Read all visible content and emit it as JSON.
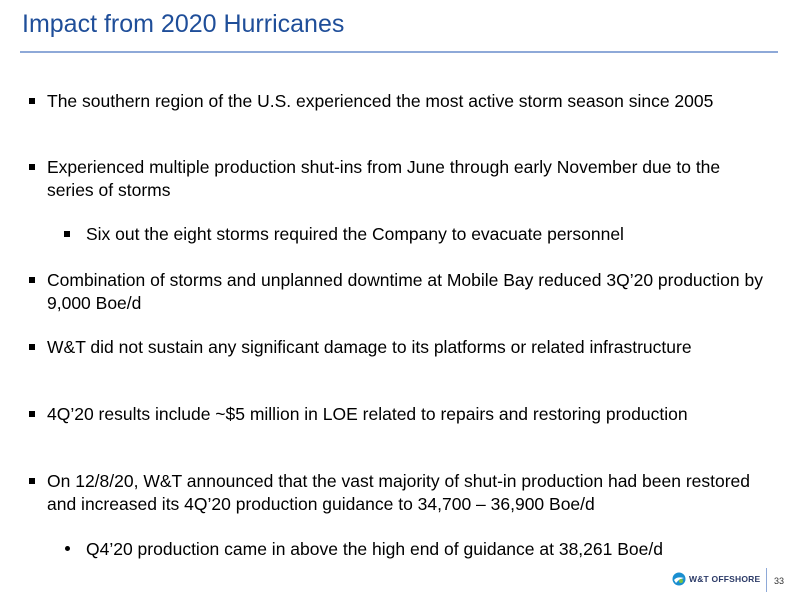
{
  "slide": {
    "title": "Impact from 2020 Hurricanes",
    "title_color": "#1f4e99",
    "rule_color": "#8ea9d8"
  },
  "bullets": [
    {
      "level": 1,
      "marker": "square",
      "text": "The southern region of the U.S. experienced the most active storm season since 2005"
    },
    {
      "level": 1,
      "marker": "square",
      "text": "Experienced multiple production shut-ins from June through early November due to the series of storms"
    },
    {
      "level": 2,
      "marker": "square",
      "text": "Six out the eight storms required the Company to evacuate personnel"
    },
    {
      "level": 1,
      "marker": "square",
      "text": "Combination of storms and unplanned downtime at Mobile Bay reduced 3Q’20 production by 9,000 Boe/d"
    },
    {
      "level": 1,
      "marker": "square",
      "text": "W&T did not sustain any significant damage to its platforms or related infrastructure"
    },
    {
      "level": 1,
      "marker": "square",
      "text": "4Q’20 results include ~$5 million in LOE related to repairs and restoring production"
    },
    {
      "level": 1,
      "marker": "square",
      "text": "On 12/8/20, W&T announced that the vast majority of shut-in production had been restored and increased its 4Q’20 production guidance to 34,700 – 36,900 Boe/d"
    },
    {
      "level": 2,
      "marker": "dot",
      "text": "Q4’20 production came in above the high end of guidance at 38,261 Boe/d"
    }
  ],
  "footer": {
    "logo_text": "W&T OFFSHORE",
    "logo_icon": "wt-offshore-logo-icon",
    "page_number": "33"
  }
}
